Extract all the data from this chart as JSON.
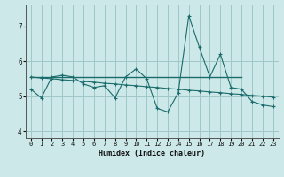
{
  "title": "",
  "xlabel": "Humidex (Indice chaleur)",
  "xlim": [
    -0.5,
    23.5
  ],
  "ylim": [
    3.8,
    7.6
  ],
  "yticks": [
    4,
    5,
    6,
    7
  ],
  "xticks": [
    0,
    1,
    2,
    3,
    4,
    5,
    6,
    7,
    8,
    9,
    10,
    11,
    12,
    13,
    14,
    15,
    16,
    17,
    18,
    19,
    20,
    21,
    22,
    23
  ],
  "bg_color": "#cce8e8",
  "line_color": "#1a6b6b",
  "grid_color": "#a0c8c8",
  "series1_x": [
    0,
    1,
    2,
    3,
    4,
    5,
    6,
    7,
    8,
    9,
    10,
    11,
    12,
    13,
    14,
    15,
    16,
    17,
    18,
    19,
    20,
    21,
    22,
    23
  ],
  "series1_y": [
    5.2,
    4.95,
    5.55,
    5.6,
    5.55,
    5.35,
    5.25,
    5.3,
    4.95,
    5.55,
    5.78,
    5.5,
    4.65,
    4.55,
    5.1,
    7.3,
    6.4,
    5.55,
    6.2,
    5.25,
    5.2,
    4.85,
    4.75,
    4.7
  ],
  "series2_x": [
    0,
    1,
    2,
    3,
    4,
    5,
    6,
    7,
    8,
    9,
    10,
    11,
    12,
    13,
    14,
    15,
    16,
    17,
    18,
    19,
    20,
    21,
    22,
    23
  ],
  "series2_y": [
    5.55,
    5.52,
    5.5,
    5.47,
    5.45,
    5.42,
    5.4,
    5.37,
    5.35,
    5.32,
    5.3,
    5.27,
    5.25,
    5.22,
    5.2,
    5.17,
    5.15,
    5.12,
    5.1,
    5.07,
    5.05,
    5.02,
    5.0,
    4.97
  ],
  "trend_x": [
    0,
    20
  ],
  "trend_y": [
    5.55,
    5.55
  ]
}
